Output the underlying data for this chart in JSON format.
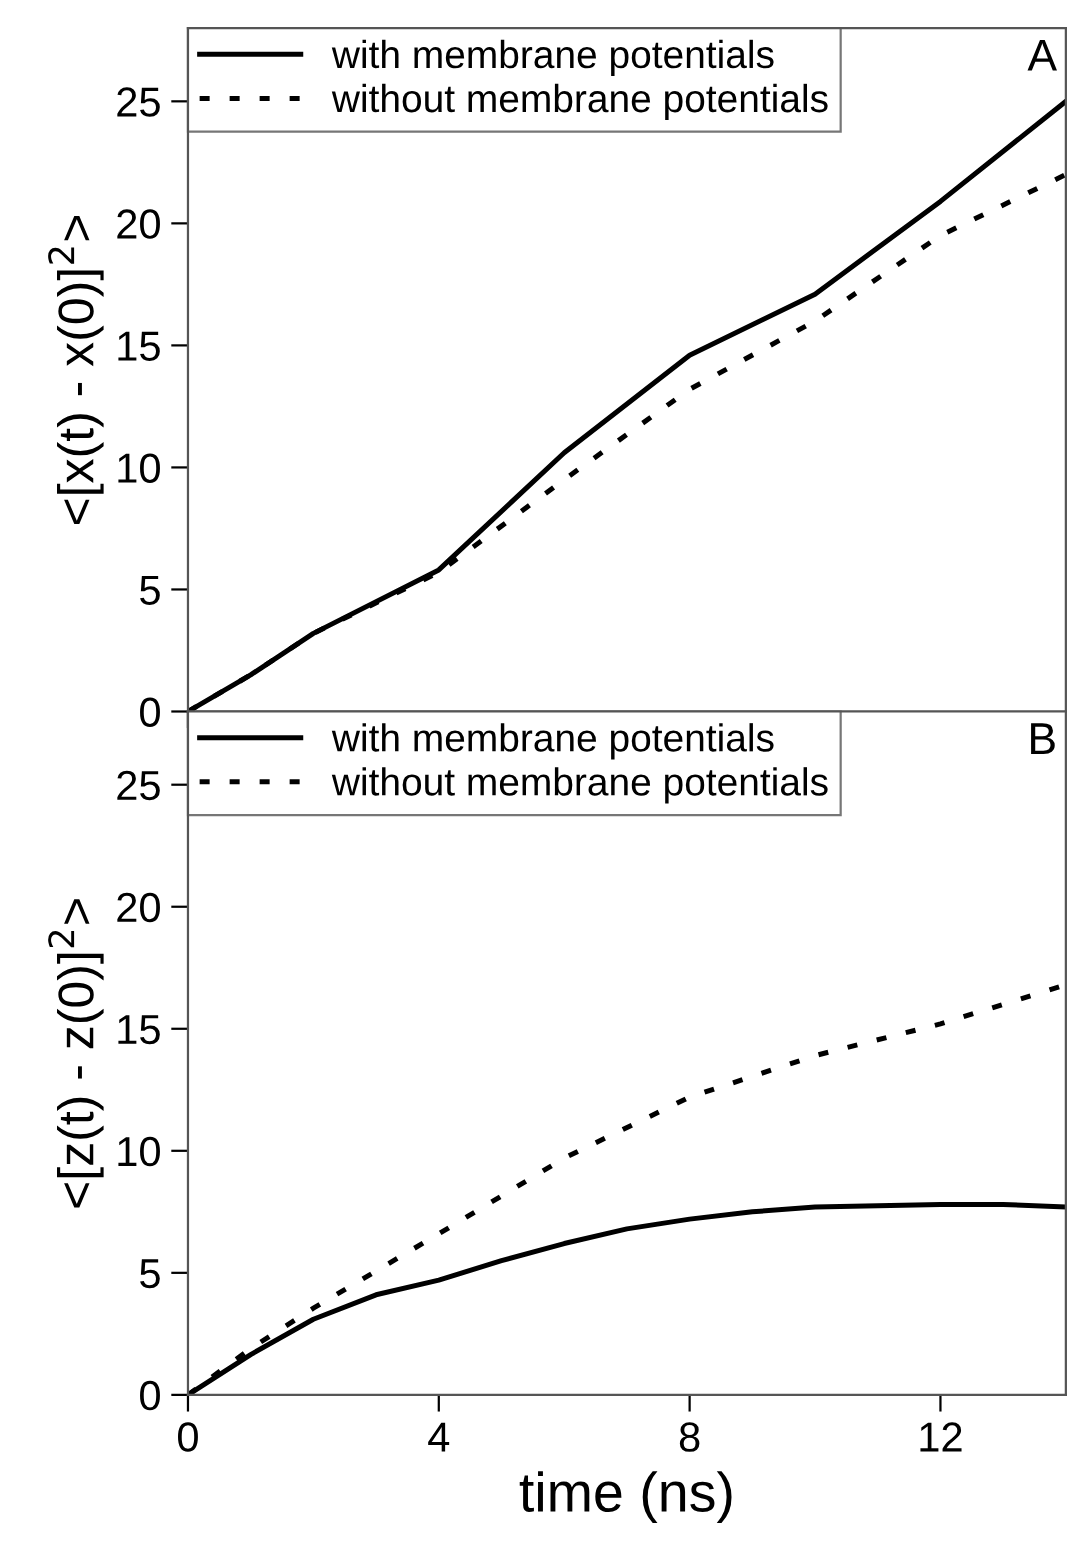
{
  "chart_data": [
    {
      "type": "line",
      "ylabel": "<[x(t) - x(0)]$^{2}$>",
      "annotations": [
        "A"
      ],
      "xlim": [
        0,
        14
      ],
      "xticks": [
        0,
        4,
        8,
        12
      ],
      "ylim": [
        0,
        28
      ],
      "yticks": [
        0,
        5,
        10,
        15,
        20,
        25
      ],
      "tick_labels": "y",
      "legend": "top left",
      "grid": false,
      "series": [
        {
          "name": "with membrane potentials",
          "color": "#000000",
          "line_style": "solid",
          "x": [
            0,
            1,
            2,
            4,
            6,
            8,
            10,
            12,
            14
          ],
          "values": [
            0,
            1.5,
            3.2,
            5.8,
            10.6,
            14.6,
            17.1,
            20.9,
            25
          ]
        },
        {
          "name": "without membrane potentials",
          "color": "#000000",
          "line_style": "dotted",
          "x": [
            0,
            1,
            2,
            4,
            6,
            8,
            10,
            12,
            14
          ],
          "values": [
            0,
            1.5,
            3.2,
            5.7,
            9.5,
            13.2,
            16,
            19.5,
            22
          ]
        }
      ]
    },
    {
      "type": "line",
      "xlabel": "time (ns)",
      "ylabel": "<[z(t) - z(0)]$^{2}$>",
      "annotations": [
        "B"
      ],
      "xlim": [
        0,
        14
      ],
      "xticks": [
        0,
        4,
        8,
        12
      ],
      "ylim": [
        0,
        28
      ],
      "yticks": [
        0,
        5,
        10,
        15,
        20,
        25
      ],
      "legend": "top left",
      "grid": false,
      "series": [
        {
          "name": "with membrane potentials",
          "color": "#000000",
          "line_style": "solid",
          "x": [
            0,
            1,
            2,
            3,
            4,
            5,
            6,
            7,
            8,
            9,
            10,
            11,
            12,
            13,
            14
          ],
          "values": [
            0,
            1.65,
            3.1,
            4.1,
            4.7,
            5.5,
            6.2,
            6.8,
            7.2,
            7.5,
            7.7,
            7.75,
            7.8,
            7.8,
            7.7
          ]
        },
        {
          "name": "without membrane potentials",
          "color": "#000000",
          "line_style": "dotted",
          "x": [
            0,
            1,
            2,
            4,
            6,
            8,
            10,
            12,
            14
          ],
          "values": [
            0,
            1.9,
            3.55,
            6.6,
            9.7,
            12.2,
            13.9,
            15.2,
            16.8
          ]
        }
      ]
    }
  ]
}
